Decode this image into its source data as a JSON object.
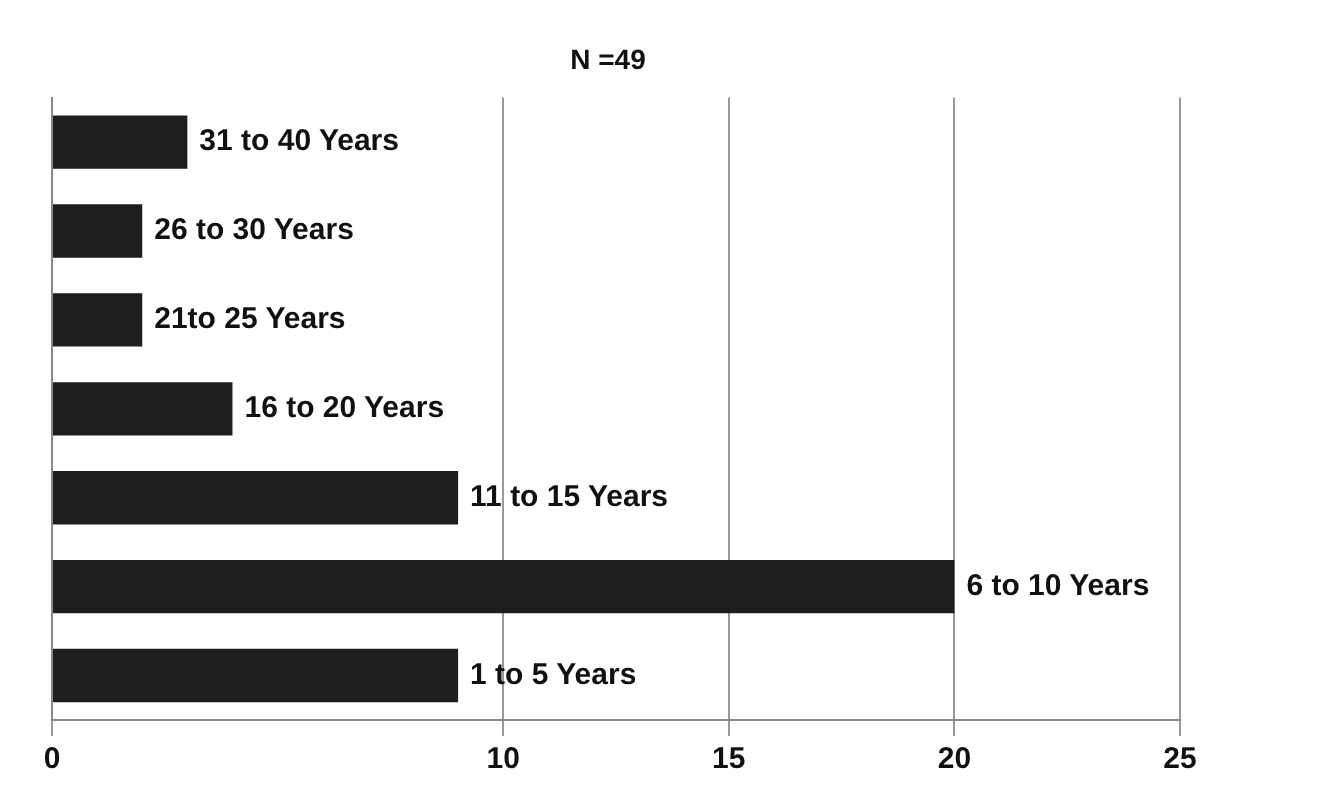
{
  "chart_data": {
    "type": "bar",
    "orientation": "horizontal",
    "title": "N =49",
    "categories": [
      "31 to 40 Years",
      "26 to 30 Years",
      "21to 25 Years",
      "16 to 20 Years",
      "11 to 15 Years",
      "6 to 10 Years",
      "1 to 5 Years"
    ],
    "values": [
      3,
      2,
      2,
      4,
      9,
      20,
      9
    ],
    "color": "#1e1e1e",
    "xlim": [
      0,
      25
    ],
    "xticks": [
      0,
      10,
      15,
      20,
      25
    ],
    "grid": "x",
    "tick_labels": "x"
  }
}
